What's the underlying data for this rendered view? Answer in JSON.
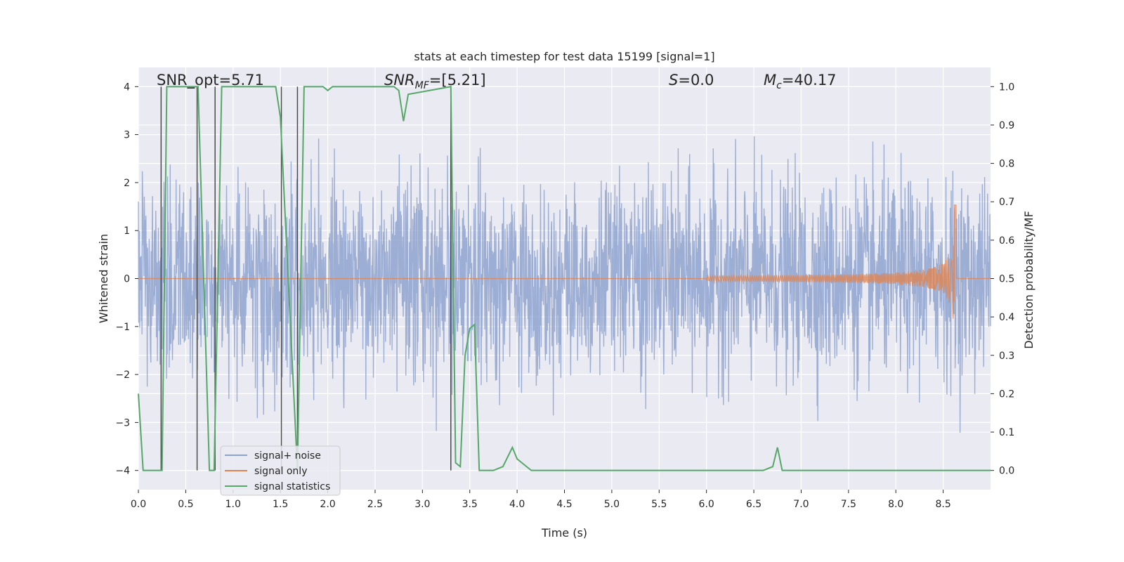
{
  "chart_data": {
    "type": "line",
    "title": "stats at each timestep for test data 15199 [signal=1]",
    "xlabel": "Time (s)",
    "ylabel_left": "Whitened strain",
    "ylabel_right": "Detection probability/MF",
    "xlim": [
      0.0,
      9.0
    ],
    "ylim_left": [
      -4.4,
      4.4
    ],
    "ylim_right": [
      -0.05,
      1.05
    ],
    "x_ticks": [
      "0.0",
      "0.5",
      "1.0",
      "1.5",
      "2.0",
      "2.5",
      "3.0",
      "3.5",
      "4.0",
      "4.5",
      "5.0",
      "5.5",
      "6.0",
      "6.5",
      "7.0",
      "7.5",
      "8.0",
      "8.5"
    ],
    "y_ticks_left": [
      "−4",
      "−3",
      "−2",
      "−1",
      "0",
      "1",
      "2",
      "3",
      "4"
    ],
    "y_ticks_right": [
      "0.0",
      "0.1",
      "0.2",
      "0.3",
      "0.4",
      "0.5",
      "0.6",
      "0.7",
      "0.8",
      "0.9",
      "1.0"
    ],
    "grid": true,
    "legend_position": "lower-left",
    "annotations": {
      "snr_opt": "SNR_opt=5.71",
      "snr_mf_label": "SNR",
      "snr_mf_sub": "MF",
      "snr_mf_value": "=[5.21]",
      "s_label": "S",
      "s_value": "=0.0",
      "mc_label": "M",
      "mc_sub": "c",
      "mc_value": "=40.17"
    },
    "series": [
      {
        "name": "signal+ noise",
        "color": "#8fa3d0",
        "description_of_envelope": [
          [
            0.0,
            2.7,
            -3.0
          ],
          [
            0.5,
            2.9,
            -2.6
          ],
          [
            1.0,
            3.2,
            -2.5
          ],
          [
            1.5,
            3.5,
            -3.3
          ],
          [
            2.0,
            3.1,
            -2.9
          ],
          [
            2.5,
            3.0,
            -2.7
          ],
          [
            3.0,
            3.3,
            -3.0
          ],
          [
            3.5,
            3.7,
            -3.6
          ],
          [
            4.0,
            3.4,
            -2.7
          ],
          [
            4.5,
            3.2,
            -2.9
          ],
          [
            5.0,
            3.3,
            -2.7
          ],
          [
            5.5,
            3.2,
            -2.8
          ],
          [
            6.0,
            3.4,
            -3.3
          ],
          [
            6.5,
            3.1,
            -3.2
          ],
          [
            7.0,
            3.3,
            -2.9
          ],
          [
            7.5,
            3.6,
            -3.1
          ],
          [
            8.0,
            3.3,
            -3.2
          ],
          [
            8.5,
            3.5,
            -3.0
          ],
          [
            9.0,
            2.7,
            -3.6
          ]
        ]
      },
      {
        "name": "signal only",
        "color": "#dd8452",
        "chirp_start": 6.0,
        "chirp_peak_time": 8.62,
        "chirp_peak_amplitude": 1.55
      },
      {
        "name": "signal statistics",
        "color": "#55a868",
        "x": [
          0.0,
          0.05,
          0.25,
          0.3,
          0.6,
          0.63,
          0.75,
          0.8,
          0.88,
          1.45,
          1.5,
          1.68,
          1.75,
          1.95,
          2.0,
          2.05,
          2.7,
          2.75,
          2.8,
          2.85,
          3.3,
          3.35,
          3.4,
          3.45,
          3.5,
          3.55,
          3.6,
          3.75,
          3.85,
          3.95,
          4.0,
          4.05,
          4.1,
          4.15,
          4.2,
          6.6,
          6.7,
          6.75,
          6.8,
          6.9,
          9.0
        ],
        "y": [
          0.2,
          0.0,
          0.0,
          1.0,
          1.0,
          1.0,
          0.0,
          0.0,
          1.0,
          1.0,
          0.92,
          0.0,
          1.0,
          1.0,
          0.99,
          1.0,
          1.0,
          0.99,
          0.91,
          0.98,
          1.0,
          0.02,
          0.01,
          0.3,
          0.37,
          0.38,
          0.0,
          0.0,
          0.01,
          0.06,
          0.03,
          0.02,
          0.01,
          0.0,
          0.0,
          0.0,
          0.01,
          0.06,
          0.0,
          0.0,
          0.0
        ]
      }
    ],
    "vertical_lines_x": [
      0.24,
      0.62,
      0.81,
      1.51,
      1.68,
      3.3
    ]
  }
}
